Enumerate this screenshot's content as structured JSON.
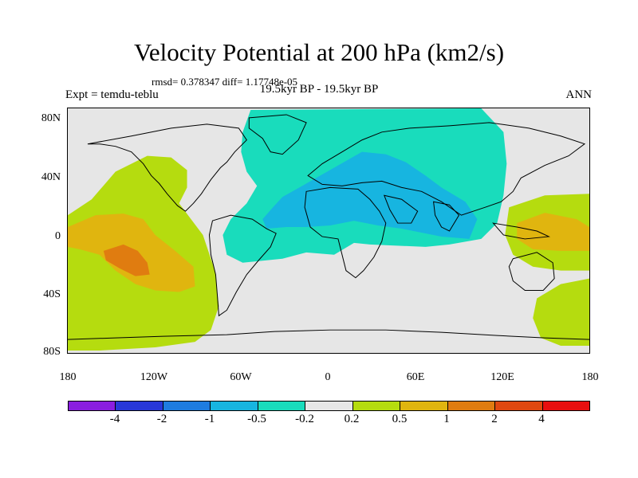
{
  "title": "Velocity Potential at 200 hPa (km2/s)",
  "stats": "rmsd= 0.378347 diff= 1.17748e-05",
  "left_label": "Expt = temdu-teblu",
  "center_label": "19.5kyr BP - 19.5kyr BP",
  "right_label": "ANN",
  "lat_labels": [
    "80N",
    "40N",
    "0",
    "40S",
    "80S"
  ],
  "lon_labels": [
    "180",
    "120W",
    "60W",
    "0",
    "60E",
    "120E",
    "180"
  ],
  "colorbar": {
    "colors": [
      "#8a1ee0",
      "#2838d8",
      "#1e7ce0",
      "#17b5e0",
      "#19dcbc",
      "#e6e6e6",
      "#b5dc0f",
      "#e0b50f",
      "#e07c10",
      "#e04810",
      "#e80f0f"
    ],
    "labels": [
      "-4",
      "-2",
      "-1",
      "-0.5",
      "-0.2",
      "0.2",
      "0.5",
      "1",
      "2",
      "4"
    ]
  },
  "field_colors": {
    "background": "#e6e6e6",
    "neg_light": "#19dcbc",
    "neg_mid": "#17b5e0",
    "pos_light": "#b5dc0f",
    "pos_mid": "#e0b50f",
    "pos_strong": "#e07c10"
  }
}
